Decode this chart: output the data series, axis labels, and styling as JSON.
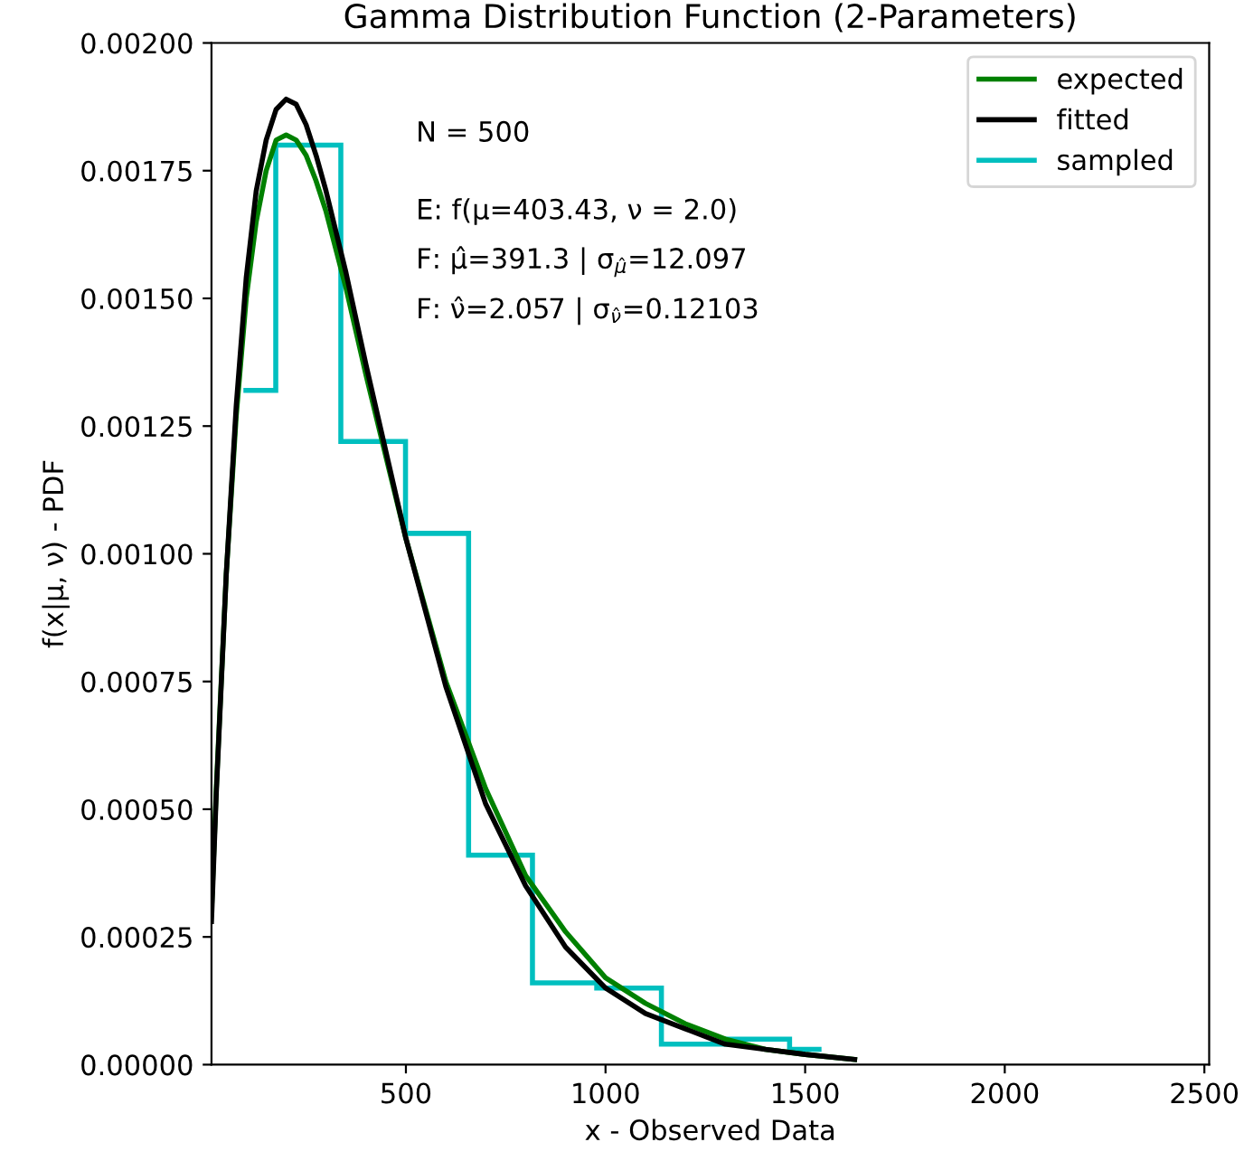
{
  "chart_data": {
    "type": "line",
    "title": "Gamma Distribution Function (2-Parameters)",
    "xlabel": "x - Observed Data",
    "ylabel": "f(x|μ, ν) - PDF",
    "xlim": [
      13,
      2512
    ],
    "xticks": [
      500,
      1000,
      1500,
      2000,
      2500
    ],
    "ylim": [
      0,
      0.002
    ],
    "yticks": [
      {
        "value": 0,
        "label": "0.00000"
      },
      {
        "value": 0.00025,
        "label": "0.00025"
      },
      {
        "value": 0.0005,
        "label": "0.00050"
      },
      {
        "value": 0.00075,
        "label": "0.00075"
      },
      {
        "value": 0.001,
        "label": "0.00100"
      },
      {
        "value": 0.00125,
        "label": "0.00125"
      },
      {
        "value": 0.0015,
        "label": "0.00150"
      },
      {
        "value": 0.00175,
        "label": "0.00175"
      },
      {
        "value": 0.002,
        "label": "0.00200"
      }
    ],
    "grid": false,
    "legend": "top right",
    "marker": "none",
    "line_style": "solid",
    "annotations": [
      "N = 500",
      "E: f(μ=403.43, ν = 2.0)",
      "F: μ̂=391.3 | σ$_{μ̂}$=12.097",
      "F: ν̂=2.057 | σ$_{ν̂}$=0.12103"
    ],
    "series": [
      {
        "name": "expected",
        "color": "#008000",
        "x": [
          13,
          25,
          50,
          75,
          100,
          125,
          150,
          175,
          200,
          225,
          250,
          275,
          300,
          350,
          400,
          500,
          600,
          700,
          800,
          900,
          1000,
          1100,
          1200,
          1300,
          1400,
          1500,
          1624
        ],
        "values": [
          0.0003,
          0.00054,
          0.00096,
          0.00127,
          0.0015,
          0.00165,
          0.00175,
          0.00181,
          0.00182,
          0.00181,
          0.00178,
          0.00173,
          0.00167,
          0.00152,
          0.00135,
          0.00103,
          0.00075,
          0.00054,
          0.00037,
          0.00026,
          0.00017,
          0.00012,
          8e-05,
          5e-05,
          3e-05,
          2e-05,
          1e-05
        ]
      },
      {
        "name": "fitted",
        "color": "#000000",
        "x": [
          13,
          25,
          50,
          75,
          100,
          125,
          150,
          175,
          200,
          225,
          250,
          275,
          300,
          350,
          400,
          500,
          600,
          700,
          800,
          900,
          1000,
          1100,
          1200,
          1300,
          1400,
          1500,
          1624
        ],
        "values": [
          0.00028,
          0.00053,
          0.00096,
          0.00129,
          0.00154,
          0.00171,
          0.00181,
          0.00187,
          0.00189,
          0.00188,
          0.00184,
          0.00178,
          0.00171,
          0.00155,
          0.00137,
          0.00103,
          0.00074,
          0.00051,
          0.00035,
          0.00023,
          0.00015,
          0.0001,
          7e-05,
          4e-05,
          3e-05,
          2e-05,
          1e-05
        ]
      },
      {
        "name": "sampled",
        "color": "#00bfbf",
        "type": "histogram",
        "bins": [
          93,
          174,
          337,
          499,
          657,
          817,
          978,
          1140,
          1303,
          1461,
          1541
        ],
        "values": [
          0.00132,
          0.0018,
          0.00122,
          0.00104,
          0.00041,
          0.00016,
          0.00015,
          4e-05,
          5e-05,
          3e-05
        ]
      }
    ]
  }
}
